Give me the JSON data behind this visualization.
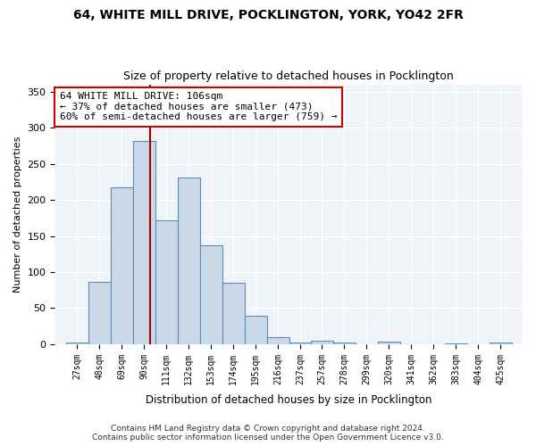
{
  "title_line1": "64, WHITE MILL DRIVE, POCKLINGTON, YORK, YO42 2FR",
  "title_line2": "Size of property relative to detached houses in Pocklington",
  "xlabel": "Distribution of detached houses by size in Pocklington",
  "ylabel": "Number of detached properties",
  "bar_color": "#c9d9e8",
  "bar_edge_color": "#5b8db8",
  "vline_x": 106,
  "vline_color": "#a00000",
  "annotation_title": "64 WHITE MILL DRIVE: 106sqm",
  "annotation_line2": "← 37% of detached houses are smaller (473)",
  "annotation_line3": "60% of semi-detached houses are larger (759) →",
  "annotation_box_color": "#ffffff",
  "annotation_box_edge": "#cc0000",
  "bin_edges": [
    27,
    48,
    69,
    90,
    111,
    132,
    153,
    174,
    195,
    216,
    237,
    257,
    278,
    299,
    320,
    341,
    362,
    383,
    404,
    425,
    446
  ],
  "bar_heights": [
    2,
    86,
    217,
    282,
    172,
    231,
    137,
    85,
    40,
    10,
    2,
    5,
    2,
    0,
    3,
    0,
    0,
    1,
    0,
    2
  ],
  "ylim": [
    0,
    360
  ],
  "yticks": [
    0,
    50,
    100,
    150,
    200,
    250,
    300,
    350
  ],
  "background_color": "#f0f4f8",
  "footnote1": "Contains HM Land Registry data © Crown copyright and database right 2024.",
  "footnote2": "Contains public sector information licensed under the Open Government Licence v3.0."
}
